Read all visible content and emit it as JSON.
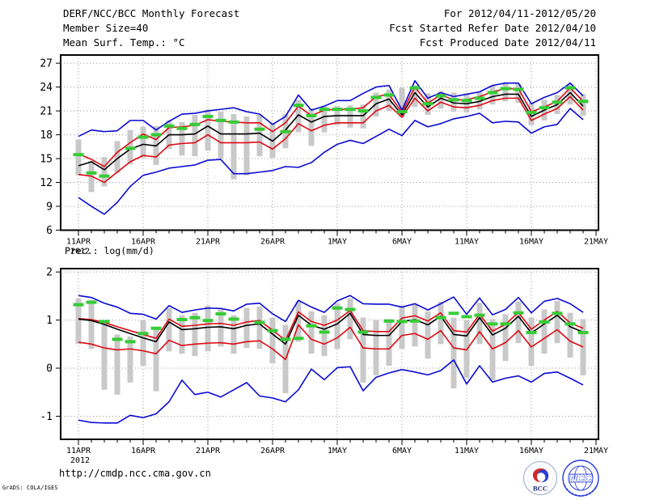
{
  "header": {
    "title": "DERF/NCC/BCC Monthly Forecast",
    "member_size": "Member Size=40",
    "for_range": "For 2012/04/11-2012/05/20",
    "fcst_started": "Fcst Started Refer Date 2012/04/10",
    "fcst_produced": "Fcst Produced Date 2012/04/11"
  },
  "footer": {
    "url": "http://cmdp.ncc.cma.gov.cn",
    "grads_credit": "GrADS: COLA/IGES",
    "logos": {
      "bcc_label": "BCC",
      "ncc_label": "NCC"
    }
  },
  "colors": {
    "line_blue": "#0a0ad2",
    "line_red": "#dd0a14",
    "line_black": "#000000",
    "obs_green": "#35cc35",
    "bar_gray": "#c9c9c9",
    "grid_gray": "#9a9a9a",
    "frame_black": "#000000",
    "text_black": "#000000",
    "logo_blue": "#2a3fd4",
    "logo_red": "#d42a2a",
    "logo_navy": "#1a2a80"
  },
  "chart_data": [
    {
      "type": "line",
      "title": "Mean Surf. Temp.: °C",
      "x_year_label": "2012",
      "x_tick_labels": [
        "11APR",
        "16APR",
        "21APR",
        "26APR",
        "1MAY",
        "6MAY",
        "11MAY",
        "16MAY",
        "21MAY"
      ],
      "x_tick_days": [
        0,
        5,
        10,
        15,
        20,
        25,
        30,
        35,
        40
      ],
      "n_days": 40,
      "ylim": [
        6,
        28.03
      ],
      "yticks": [
        6,
        9,
        12,
        15,
        18,
        21,
        24,
        27
      ],
      "grid": true,
      "legend_position": "none",
      "series": [
        {
          "name": "ensemble-max",
          "color_key": "line_blue",
          "style": "line",
          "values": [
            17.8,
            18.6,
            18.4,
            18.5,
            19.8,
            19.8,
            18.6,
            19.7,
            20.6,
            20.7,
            21.0,
            21.2,
            21.4,
            20.9,
            20.6,
            19.3,
            20.3,
            23.0,
            21.1,
            21.6,
            22.3,
            22.3,
            23.2,
            24.0,
            24.2,
            21.1,
            24.8,
            22.6,
            23.3,
            22.8,
            23.1,
            23.4,
            24.2,
            24.5,
            24.5,
            21.9,
            22.7,
            23.3,
            24.5,
            22.9
          ]
        },
        {
          "name": "ensemble-plus-spread",
          "color_key": "line_red",
          "style": "line",
          "values": [
            15.6,
            14.9,
            14.0,
            15.8,
            17.0,
            18.1,
            17.4,
            18.9,
            19.0,
            19.2,
            19.9,
            19.7,
            19.6,
            19.5,
            19.5,
            18.4,
            19.5,
            21.6,
            20.4,
            21.1,
            21.2,
            21.2,
            21.4,
            22.8,
            23.1,
            20.8,
            24.0,
            22.0,
            23.0,
            22.4,
            22.4,
            22.8,
            23.4,
            23.8,
            23.8,
            20.9,
            21.5,
            22.2,
            23.9,
            22.2
          ]
        },
        {
          "name": "ensemble-mean",
          "color_key": "line_black",
          "style": "line",
          "values": [
            14.1,
            14.6,
            13.6,
            15.0,
            16.2,
            16.8,
            16.6,
            18.0,
            18.0,
            18.1,
            19.1,
            18.1,
            18.1,
            18.1,
            18.2,
            17.2,
            18.6,
            20.5,
            19.6,
            20.3,
            20.4,
            20.4,
            20.4,
            21.9,
            22.5,
            20.5,
            23.3,
            21.5,
            22.6,
            22.0,
            21.9,
            22.2,
            22.8,
            23.1,
            23.1,
            20.3,
            21.1,
            21.8,
            23.3,
            21.6
          ]
        },
        {
          "name": "ensemble-minus-spread",
          "color_key": "line_red",
          "style": "line",
          "values": [
            13.0,
            12.8,
            12.0,
            13.3,
            14.6,
            15.4,
            15.2,
            16.7,
            16.9,
            17.0,
            18.0,
            17.0,
            17.0,
            17.0,
            17.1,
            16.2,
            17.5,
            19.4,
            18.5,
            19.2,
            19.5,
            19.5,
            19.5,
            21.0,
            21.7,
            20.2,
            22.6,
            21.0,
            22.1,
            21.5,
            21.4,
            21.7,
            22.3,
            22.6,
            22.6,
            19.8,
            20.6,
            21.3,
            22.8,
            21.1
          ]
        },
        {
          "name": "ensemble-min",
          "color_key": "line_blue",
          "style": "line",
          "values": [
            10.1,
            9.0,
            8.0,
            9.5,
            11.5,
            12.9,
            13.3,
            13.8,
            14.0,
            14.2,
            14.8,
            14.9,
            13.1,
            13.1,
            13.3,
            13.5,
            14.0,
            13.9,
            14.5,
            15.8,
            16.8,
            17.3,
            16.9,
            17.8,
            18.7,
            17.9,
            19.8,
            19.0,
            19.4,
            20.0,
            20.3,
            20.7,
            19.5,
            19.7,
            19.6,
            18.2,
            19.0,
            19.3,
            21.3,
            19.9
          ]
        },
        {
          "name": "observation",
          "color_key": "obs_green",
          "style": "dash-segments",
          "values": [
            15.5,
            13.2,
            12.8,
            null,
            16.3,
            17.7,
            18.0,
            19.1,
            18.8,
            19.3,
            20.3,
            19.8,
            19.6,
            null,
            18.7,
            null,
            18.4,
            21.7,
            20.4,
            21.2,
            21.2,
            21.2,
            21.0,
            22.7,
            23.0,
            20.9,
            23.9,
            21.9,
            22.9,
            22.4,
            22.3,
            22.6,
            23.3,
            23.8,
            23.7,
            20.8,
            21.4,
            22.1,
            23.9,
            22.2
          ]
        },
        {
          "name": "member-spread-bars",
          "color_key": "bar_gray",
          "style": "bars",
          "ranges": [
            [
              12.9,
              17.4
            ],
            [
              10.8,
              14.7
            ],
            [
              11.5,
              15.2
            ],
            [
              13.2,
              17.2
            ],
            [
              14.3,
              18.6
            ],
            [
              15.1,
              19.0
            ],
            [
              14.2,
              19.1
            ],
            [
              16.2,
              19.8
            ],
            [
              15.4,
              19.6
            ],
            [
              15.3,
              20.5
            ],
            [
              16.0,
              21.2
            ],
            [
              15.0,
              20.9
            ],
            [
              12.4,
              20.6
            ],
            [
              12.9,
              20.3
            ],
            [
              15.3,
              20.5
            ],
            [
              15.1,
              19.5
            ],
            [
              16.3,
              20.6
            ],
            [
              18.3,
              22.4
            ],
            [
              16.6,
              21.3
            ],
            [
              18.3,
              21.6
            ],
            [
              19.2,
              21.6
            ],
            [
              18.9,
              21.7
            ],
            [
              18.8,
              21.8
            ],
            [
              20.3,
              23.3
            ],
            [
              21.0,
              23.7
            ],
            [
              20.2,
              23.9
            ],
            [
              21.5,
              24.2
            ],
            [
              20.5,
              23.2
            ],
            [
              21.3,
              23.5
            ],
            [
              20.9,
              23.3
            ],
            [
              20.8,
              23.2
            ],
            [
              21.2,
              23.4
            ],
            [
              21.8,
              24.2
            ],
            [
              22.2,
              24.6
            ],
            [
              22.0,
              24.4
            ],
            [
              19.2,
              22.0
            ],
            [
              19.8,
              22.4
            ],
            [
              20.6,
              23.0
            ],
            [
              21.8,
              24.4
            ],
            [
              20.4,
              23.1
            ]
          ]
        }
      ]
    },
    {
      "type": "line",
      "title": "Prec.: log(mm/d)",
      "x_year_label": "2012",
      "x_tick_labels": [
        "11APR",
        "16APR",
        "21APR",
        "26APR",
        "1MAY",
        "6MAY",
        "11MAY",
        "16MAY",
        "21MAY"
      ],
      "x_tick_days": [
        0,
        5,
        10,
        15,
        20,
        25,
        30,
        35,
        40
      ],
      "n_days": 40,
      "ylim": [
        -1.48,
        2.07
      ],
      "yticks": [
        -1,
        0,
        1,
        2
      ],
      "grid": true,
      "legend_position": "none",
      "series": [
        {
          "name": "ensemble-max",
          "color_key": "line_blue",
          "style": "line",
          "values": [
            1.51,
            1.47,
            1.35,
            1.27,
            1.14,
            1.12,
            1.02,
            1.3,
            1.16,
            1.21,
            1.25,
            1.24,
            1.19,
            1.33,
            1.35,
            1.13,
            0.97,
            1.41,
            1.27,
            1.16,
            1.4,
            1.51,
            1.34,
            1.33,
            1.33,
            1.27,
            1.34,
            1.21,
            1.34,
            1.48,
            1.12,
            1.46,
            1.11,
            1.22,
            1.47,
            1.15,
            1.39,
            1.45,
            1.34,
            1.16
          ]
        },
        {
          "name": "ensemble-plus-spread",
          "color_key": "line_red",
          "style": "line",
          "values": [
            1.03,
            1.01,
            0.95,
            0.86,
            0.78,
            0.7,
            0.62,
            1.02,
            0.87,
            0.89,
            0.92,
            0.93,
            0.89,
            0.96,
            0.99,
            0.79,
            0.58,
            1.17,
            0.97,
            0.89,
            1.0,
            1.2,
            0.78,
            0.76,
            0.76,
            1.04,
            1.09,
            0.98,
            1.15,
            0.78,
            0.75,
            1.12,
            0.77,
            0.91,
            1.16,
            0.81,
            1.0,
            1.18,
            0.94,
            0.83
          ]
        },
        {
          "name": "ensemble-mean",
          "color_key": "line_black",
          "style": "line",
          "values": [
            1.02,
            0.99,
            0.91,
            0.81,
            0.72,
            0.63,
            0.55,
            0.96,
            0.8,
            0.82,
            0.85,
            0.86,
            0.82,
            0.89,
            0.92,
            0.71,
            0.5,
            1.1,
            0.89,
            0.81,
            0.92,
            1.14,
            0.7,
            0.68,
            0.68,
            0.97,
            1.01,
            0.9,
            1.08,
            0.7,
            0.67,
            1.05,
            0.69,
            0.83,
            1.08,
            0.73,
            0.92,
            1.1,
            0.86,
            0.75
          ]
        },
        {
          "name": "ensemble-minus-spread",
          "color_key": "line_red",
          "style": "line",
          "values": [
            0.54,
            0.5,
            0.42,
            0.38,
            0.4,
            0.36,
            0.3,
            0.58,
            0.47,
            0.5,
            0.52,
            0.53,
            0.5,
            0.55,
            0.57,
            0.4,
            0.18,
            0.9,
            0.6,
            0.5,
            0.63,
            0.85,
            0.42,
            0.4,
            0.4,
            0.68,
            0.72,
            0.6,
            0.78,
            0.42,
            0.38,
            0.76,
            0.4,
            0.53,
            0.78,
            0.44,
            0.62,
            0.8,
            0.56,
            0.44
          ]
        },
        {
          "name": "ensemble-min",
          "color_key": "line_blue",
          "style": "line",
          "values": [
            -1.08,
            -1.13,
            -1.14,
            -1.14,
            -0.98,
            -1.03,
            -0.95,
            -0.7,
            -0.25,
            -0.55,
            -0.5,
            -0.6,
            -0.45,
            -0.3,
            -0.58,
            -0.62,
            -0.7,
            -0.45,
            -0.02,
            -0.24,
            0.01,
            0.03,
            -0.47,
            -0.19,
            -0.1,
            -0.03,
            -0.08,
            -0.14,
            -0.05,
            0.17,
            -0.33,
            0.05,
            -0.29,
            -0.21,
            -0.16,
            -0.29,
            -0.11,
            -0.08,
            -0.21,
            -0.35
          ]
        },
        {
          "name": "observation",
          "color_key": "obs_green",
          "style": "dash-segments",
          "values": [
            1.32,
            1.37,
            0.97,
            0.6,
            0.55,
            0.72,
            0.83,
            null,
            1.01,
            1.05,
            0.99,
            1.13,
            1.02,
            null,
            0.95,
            0.78,
            0.6,
            0.62,
            0.88,
            0.75,
            1.25,
            1.22,
            0.75,
            null,
            0.98,
            0.97,
            0.98,
            null,
            1.05,
            1.14,
            1.07,
            1.1,
            0.92,
            0.92,
            1.15,
            0.74,
            0.96,
            1.14,
            0.92,
            0.74
          ]
        },
        {
          "name": "member-spread-bars",
          "color_key": "bar_gray",
          "style": "bars",
          "ranges": [
            [
              0.5,
              1.45
            ],
            [
              0.4,
              1.42
            ],
            [
              -0.45,
              0.92
            ],
            [
              -0.55,
              0.7
            ],
            [
              -0.3,
              0.66
            ],
            [
              0.05,
              1.0
            ],
            [
              -0.48,
              0.83
            ],
            [
              0.35,
              1.25
            ],
            [
              0.3,
              1.1
            ],
            [
              0.25,
              1.15
            ],
            [
              0.35,
              1.3
            ],
            [
              0.45,
              1.22
            ],
            [
              0.3,
              1.1
            ],
            [
              0.42,
              1.25
            ],
            [
              0.4,
              1.28
            ],
            [
              0.1,
              1.05
            ],
            [
              -0.52,
              0.9
            ],
            [
              0.55,
              1.4
            ],
            [
              0.3,
              1.18
            ],
            [
              0.25,
              1.1
            ],
            [
              0.4,
              1.35
            ],
            [
              0.6,
              1.45
            ],
            [
              -0.3,
              1.05
            ],
            [
              -0.15,
              1.0
            ],
            [
              0.05,
              1.02
            ],
            [
              0.4,
              1.3
            ],
            [
              0.45,
              1.32
            ],
            [
              0.2,
              1.18
            ],
            [
              0.5,
              1.38
            ],
            [
              -0.42,
              1.05
            ],
            [
              -0.2,
              1.0
            ],
            [
              0.5,
              1.36
            ],
            [
              -0.25,
              1.02
            ],
            [
              0.15,
              1.12
            ],
            [
              0.52,
              1.38
            ],
            [
              0.05,
              1.05
            ],
            [
              0.3,
              1.22
            ],
            [
              0.52,
              1.4
            ],
            [
              0.22,
              1.15
            ],
            [
              -0.15,
              1.02
            ]
          ]
        }
      ]
    }
  ]
}
